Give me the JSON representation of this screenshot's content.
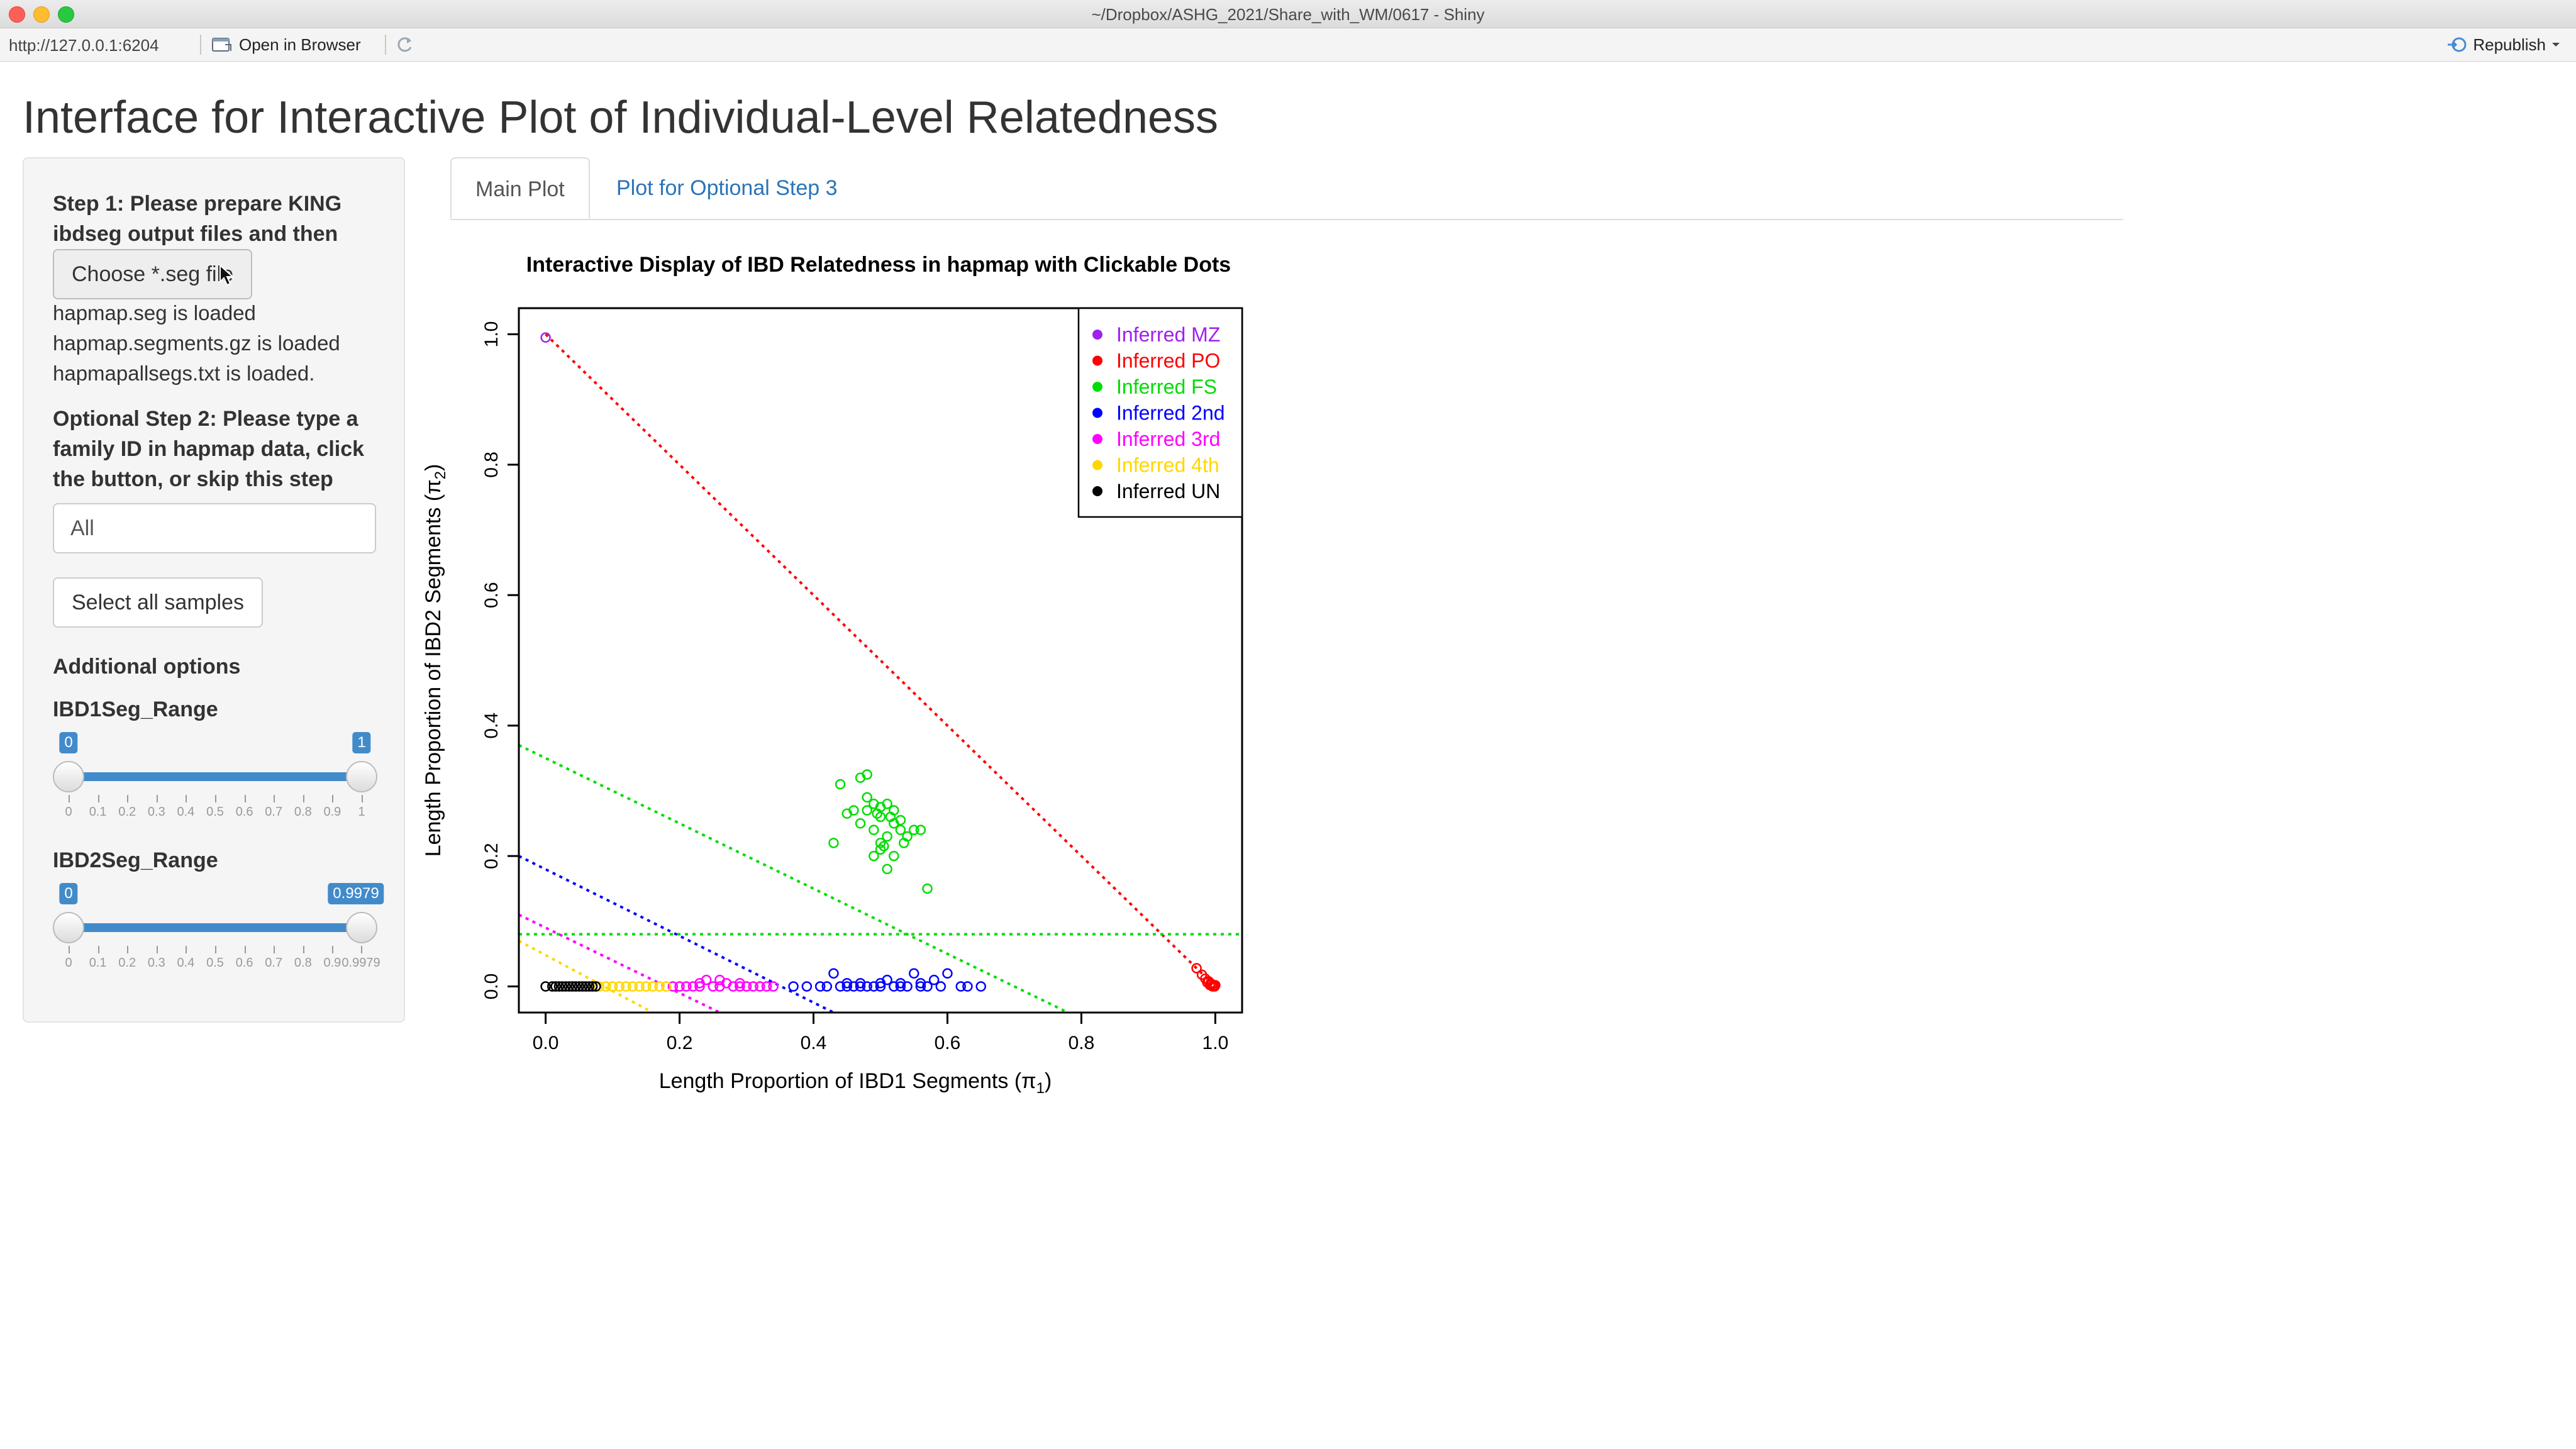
{
  "window": {
    "title": "~/Dropbox/ASHG_2021/Share_with_WM/0617 - Shiny"
  },
  "toolbar": {
    "url": "http://127.0.0.1:6204",
    "open_in_browser": "Open in Browser",
    "republish": "Republish"
  },
  "page": {
    "title": "Interface for Interactive Plot of Individual-Level Relatedness"
  },
  "sidebar": {
    "step1_label": "Step 1: Please prepare KING ibdseg output files and then",
    "choose_file_button": "Choose *.seg file",
    "loaded_files": [
      "hapmap.seg is loaded",
      "hapmap.segments.gz is loaded",
      "hapmapallsegs.txt is loaded."
    ],
    "step2_label": "Optional Step 2: Please type a family ID in hapmap data, click the button, or skip this step",
    "family_id_value": "All",
    "select_all_button": "Select all samples",
    "additional_options": "Additional options",
    "ibd1_slider": {
      "label": "IBD1Seg_Range",
      "min_label": "0",
      "max_label": "1",
      "from": 0,
      "to": 1,
      "ticks": [
        "0",
        "0.1",
        "0.2",
        "0.3",
        "0.4",
        "0.5",
        "0.6",
        "0.7",
        "0.8",
        "0.9",
        "1"
      ]
    },
    "ibd2_slider": {
      "label": "IBD2Seg_Range",
      "min_label": "0",
      "max_label": "0.9979",
      "from": 0,
      "to": 0.9979,
      "ticks": [
        "0",
        "0.1",
        "0.2",
        "0.3",
        "0.4",
        "0.5",
        "0.6",
        "0.7",
        "0.8",
        "0.9",
        "0.9979"
      ]
    }
  },
  "tabs": [
    {
      "label": "Main Plot",
      "active": true
    },
    {
      "label": "Plot for Optional Step 3",
      "active": false
    }
  ],
  "chart_data": {
    "type": "scatter",
    "title": "Interactive Display of IBD Relatedness in hapmap with Clickable Dots",
    "xlabel": "Length Proportion of IBD1 Segments (π",
    "xlabel_sub": "1",
    "ylabel": "Length Proportion of IBD2 Segments (π",
    "ylabel_sub": "2",
    "xlim": [
      -0.04,
      1.04
    ],
    "ylim": [
      -0.04,
      1.04
    ],
    "x_ticks": [
      "0.0",
      "0.2",
      "0.4",
      "0.6",
      "0.8",
      "1.0"
    ],
    "y_ticks": [
      "0.0",
      "0.2",
      "0.4",
      "0.6",
      "0.8",
      "1.0"
    ],
    "legend_position": "top-right",
    "series": [
      {
        "name": "Inferred MZ",
        "color": "#a020f0",
        "points": [
          [
            0.0,
            0.995
          ]
        ]
      },
      {
        "name": "Inferred PO",
        "color": "#ff0000",
        "points": [
          [
            0.972,
            0.028
          ],
          [
            0.98,
            0.018
          ],
          [
            0.985,
            0.012
          ],
          [
            0.99,
            0.008
          ],
          [
            0.993,
            0.005
          ],
          [
            0.995,
            0.003
          ],
          [
            0.997,
            0.001
          ],
          [
            0.999,
            0.0
          ],
          [
            1.0,
            0.002
          ],
          [
            0.988,
            0.006
          ],
          [
            0.996,
            0.0
          ],
          [
            0.992,
            0.002
          ]
        ]
      },
      {
        "name": "Inferred FS",
        "color": "#00dd00",
        "points": [
          [
            0.44,
            0.31
          ],
          [
            0.47,
            0.32
          ],
          [
            0.48,
            0.325
          ],
          [
            0.45,
            0.265
          ],
          [
            0.47,
            0.25
          ],
          [
            0.48,
            0.27
          ],
          [
            0.49,
            0.28
          ],
          [
            0.5,
            0.26
          ],
          [
            0.5,
            0.275
          ],
          [
            0.51,
            0.28
          ],
          [
            0.52,
            0.27
          ],
          [
            0.49,
            0.24
          ],
          [
            0.5,
            0.22
          ],
          [
            0.51,
            0.23
          ],
          [
            0.52,
            0.25
          ],
          [
            0.53,
            0.255
          ],
          [
            0.54,
            0.23
          ],
          [
            0.55,
            0.24
          ],
          [
            0.56,
            0.24
          ],
          [
            0.5,
            0.21
          ],
          [
            0.49,
            0.2
          ],
          [
            0.52,
            0.2
          ],
          [
            0.51,
            0.18
          ],
          [
            0.53,
            0.24
          ],
          [
            0.46,
            0.27
          ],
          [
            0.48,
            0.29
          ],
          [
            0.495,
            0.265
          ],
          [
            0.43,
            0.22
          ],
          [
            0.57,
            0.15
          ],
          [
            0.505,
            0.215
          ],
          [
            0.515,
            0.26
          ],
          [
            0.535,
            0.22
          ]
        ]
      },
      {
        "name": "Inferred 2nd",
        "color": "#0000ff",
        "points": [
          [
            0.37,
            0.0
          ],
          [
            0.39,
            0.0
          ],
          [
            0.41,
            0.0
          ],
          [
            0.42,
            0.0
          ],
          [
            0.43,
            0.02
          ],
          [
            0.44,
            0.0
          ],
          [
            0.45,
            0.0
          ],
          [
            0.46,
            0.0
          ],
          [
            0.47,
            0.0
          ],
          [
            0.48,
            0.0
          ],
          [
            0.49,
            0.0
          ],
          [
            0.5,
            0.0
          ],
          [
            0.51,
            0.01
          ],
          [
            0.52,
            0.0
          ],
          [
            0.53,
            0.0
          ],
          [
            0.54,
            0.0
          ],
          [
            0.55,
            0.02
          ],
          [
            0.56,
            0.0
          ],
          [
            0.57,
            0.0
          ],
          [
            0.58,
            0.01
          ],
          [
            0.59,
            0.0
          ],
          [
            0.6,
            0.02
          ],
          [
            0.62,
            0.0
          ],
          [
            0.63,
            0.0
          ],
          [
            0.65,
            0.0
          ],
          [
            0.45,
            0.005
          ],
          [
            0.47,
            0.005
          ],
          [
            0.5,
            0.005
          ],
          [
            0.53,
            0.005
          ],
          [
            0.56,
            0.005
          ]
        ]
      },
      {
        "name": "Inferred 3rd",
        "color": "#ff00ff",
        "points": [
          [
            0.19,
            0.0
          ],
          [
            0.2,
            0.0
          ],
          [
            0.21,
            0.0
          ],
          [
            0.22,
            0.0
          ],
          [
            0.23,
            0.0
          ],
          [
            0.24,
            0.01
          ],
          [
            0.25,
            0.0
          ],
          [
            0.26,
            0.0
          ],
          [
            0.27,
            0.005
          ],
          [
            0.28,
            0.0
          ],
          [
            0.29,
            0.0
          ],
          [
            0.3,
            0.0
          ],
          [
            0.31,
            0.0
          ],
          [
            0.32,
            0.0
          ],
          [
            0.33,
            0.0
          ],
          [
            0.34,
            0.0
          ],
          [
            0.23,
            0.005
          ],
          [
            0.26,
            0.01
          ],
          [
            0.29,
            0.005
          ]
        ]
      },
      {
        "name": "Inferred 4th",
        "color": "#ffd700",
        "points": [
          [
            0.08,
            0.0
          ],
          [
            0.09,
            0.0
          ],
          [
            0.1,
            0.0
          ],
          [
            0.11,
            0.0
          ],
          [
            0.12,
            0.0
          ],
          [
            0.13,
            0.0
          ],
          [
            0.14,
            0.0
          ],
          [
            0.15,
            0.0
          ],
          [
            0.16,
            0.0
          ],
          [
            0.17,
            0.0
          ],
          [
            0.18,
            0.0
          ]
        ]
      },
      {
        "name": "Inferred UN",
        "color": "#000000",
        "points": [
          [
            0.0,
            0.0
          ],
          [
            0.01,
            0.0
          ],
          [
            0.015,
            0.0
          ],
          [
            0.02,
            0.0
          ],
          [
            0.025,
            0.0
          ],
          [
            0.03,
            0.0
          ],
          [
            0.035,
            0.0
          ],
          [
            0.04,
            0.0
          ],
          [
            0.045,
            0.0
          ],
          [
            0.05,
            0.0
          ],
          [
            0.055,
            0.0
          ],
          [
            0.06,
            0.0
          ],
          [
            0.065,
            0.0
          ],
          [
            0.07,
            0.0
          ],
          [
            0.075,
            0.0
          ]
        ]
      }
    ],
    "reference_lines": [
      {
        "color": "#ff0000",
        "from": [
          0.0,
          1.0
        ],
        "to": [
          1.0,
          0.0
        ]
      },
      {
        "color": "#00dd00",
        "from": [
          -0.04,
          0.37
        ],
        "to": [
          0.78,
          -0.04
        ]
      },
      {
        "color": "#00dd00",
        "from": [
          -0.04,
          0.08
        ],
        "to": [
          1.04,
          0.08
        ]
      },
      {
        "color": "#0000ff",
        "from": [
          -0.04,
          0.2
        ],
        "to": [
          0.43,
          -0.04
        ]
      },
      {
        "color": "#ff00ff",
        "from": [
          -0.04,
          0.11
        ],
        "to": [
          0.26,
          -0.04
        ]
      },
      {
        "color": "#ffd700",
        "from": [
          -0.04,
          0.07
        ],
        "to": [
          0.16,
          -0.04
        ]
      }
    ]
  }
}
